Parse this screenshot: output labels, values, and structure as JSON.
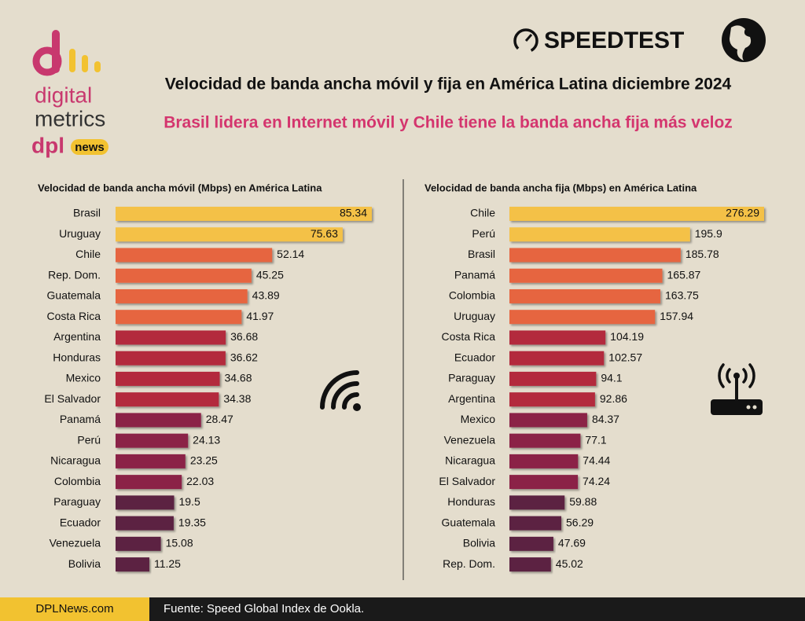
{
  "header": {
    "logo_word1": "digital",
    "logo_word2": "metrics",
    "logo_brand": "dpl",
    "logo_news": "news",
    "speedtest": "SPEEDTEST",
    "title": "Velocidad de banda ancha móvil y fija en América Latina diciembre 2024",
    "subtitle": "Brasil lidera en Internet móvil y Chile tiene la banda ancha fija más veloz"
  },
  "chart_data": [
    {
      "type": "hbar",
      "title": "Velocidad de banda ancha móvil (Mbps) en América Latina",
      "categories": [
        "Brasil",
        "Uruguay",
        "Chile",
        "Rep. Dom.",
        "Guatemala",
        "Costa Rica",
        "Argentina",
        "Honduras",
        "Mexico",
        "El Salvador",
        "Panamá",
        "Perú",
        "Nicaragua",
        "Colombia",
        "Paraguay",
        "Ecuador",
        "Venezuela",
        "Bolivia"
      ],
      "values": [
        85.34,
        75.63,
        52.14,
        45.25,
        43.89,
        41.97,
        36.68,
        36.62,
        34.68,
        34.38,
        28.47,
        24.13,
        23.25,
        22.03,
        19.5,
        19.35,
        15.08,
        11.25
      ],
      "colors": [
        "#f4c146",
        "#f4c146",
        "#e6653f",
        "#e6653f",
        "#e6653f",
        "#e6653f",
        "#b32a3e",
        "#b32a3e",
        "#b32a3e",
        "#b32a3e",
        "#8b2446",
        "#8b2446",
        "#8b2446",
        "#8b2446",
        "#5b2143",
        "#5b2143",
        "#5b2143",
        "#5b2143"
      ]
    },
    {
      "type": "hbar",
      "title": "Velocidad de banda ancha fija (Mbps) en América Latina",
      "categories": [
        "Chile",
        "Perú",
        "Brasil",
        "Panamá",
        "Colombia",
        "Uruguay",
        "Costa Rica",
        "Ecuador",
        "Paraguay",
        "Argentina",
        "Mexico",
        "Venezuela",
        "Nicaragua",
        "El Salvador",
        "Honduras",
        "Guatemala",
        "Bolivia",
        "Rep. Dom."
      ],
      "values": [
        276.29,
        195.9,
        185.78,
        165.87,
        163.75,
        157.94,
        104.19,
        102.57,
        94.1,
        92.86,
        84.37,
        77.1,
        74.44,
        74.24,
        59.88,
        56.29,
        47.69,
        45.02
      ],
      "colors": [
        "#f4c146",
        "#f4c146",
        "#e6653f",
        "#e6653f",
        "#e6653f",
        "#e6653f",
        "#b32a3e",
        "#b32a3e",
        "#b32a3e",
        "#b32a3e",
        "#8b2446",
        "#8b2446",
        "#8b2446",
        "#8b2446",
        "#5b2143",
        "#5b2143",
        "#5b2143",
        "#5b2143"
      ]
    }
  ],
  "footer": {
    "site": "DPLNews.com",
    "source": "Fuente: Speed Global Index de Ookla."
  }
}
